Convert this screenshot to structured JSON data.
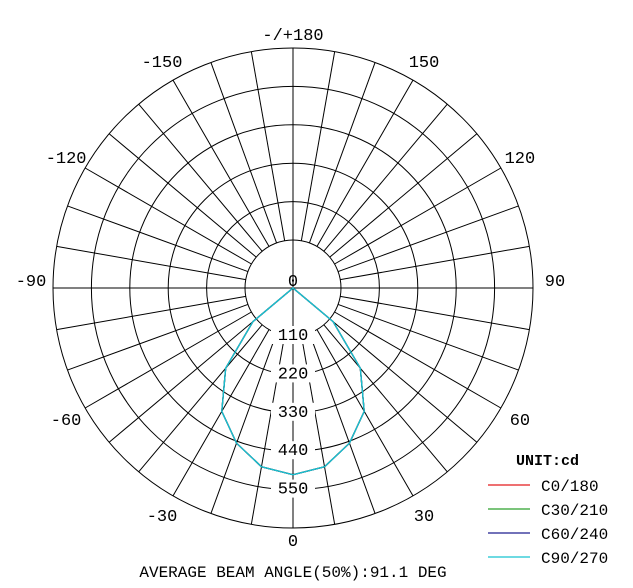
{
  "chart_data": {
    "type": "polar",
    "unit_label": "UNIT:cd",
    "footer": "AVERAGE BEAM ANGLE(50%):91.1 DEG",
    "angle_labels": [
      {
        "angle": 180,
        "text": "-/+180"
      },
      {
        "angle": -150,
        "text": "-150"
      },
      {
        "angle": 150,
        "text": "150"
      },
      {
        "angle": -120,
        "text": "-120"
      },
      {
        "angle": 120,
        "text": "120"
      },
      {
        "angle": -90,
        "text": "-90"
      },
      {
        "angle": 90,
        "text": "90"
      },
      {
        "angle": -60,
        "text": "-60"
      },
      {
        "angle": 60,
        "text": "60"
      },
      {
        "angle": -30,
        "text": "-30"
      },
      {
        "angle": 30,
        "text": "30"
      },
      {
        "angle": 0,
        "text": "0"
      }
    ],
    "radial_ticks": [
      "0",
      "110",
      "220",
      "330",
      "440",
      "550"
    ],
    "r_max": 550,
    "angle_step": 10,
    "series": [
      {
        "name": "C0/180",
        "color": "#e31a1c",
        "angles": [
          -90,
          -80,
          -70,
          -60,
          -50,
          -40,
          -30,
          -20,
          -10,
          0,
          10,
          20,
          30,
          40,
          50,
          60,
          70,
          80,
          90
        ],
        "values": [
          0,
          0,
          0,
          0,
          150,
          300,
          408,
          473,
          520,
          535,
          520,
          473,
          408,
          300,
          150,
          0,
          0,
          0,
          0
        ]
      },
      {
        "name": "C30/210",
        "color": "#2ca02c",
        "angles": [
          -90,
          -80,
          -70,
          -60,
          -50,
          -40,
          -30,
          -20,
          -10,
          0,
          10,
          20,
          30,
          40,
          50,
          60,
          70,
          80,
          90
        ],
        "values": [
          0,
          0,
          0,
          0,
          150,
          300,
          408,
          473,
          520,
          535,
          520,
          473,
          408,
          300,
          150,
          0,
          0,
          0,
          0
        ]
      },
      {
        "name": "C60/240",
        "color": "#1f1f8f",
        "angles": [
          -90,
          -80,
          -70,
          -60,
          -50,
          -40,
          -30,
          -20,
          -10,
          0,
          10,
          20,
          30,
          40,
          50,
          60,
          70,
          80,
          90
        ],
        "values": [
          0,
          0,
          0,
          0,
          150,
          300,
          408,
          473,
          520,
          535,
          520,
          473,
          408,
          300,
          150,
          0,
          0,
          0,
          0
        ]
      },
      {
        "name": "C90/270",
        "color": "#17c3d0",
        "angles": [
          -90,
          -80,
          -70,
          -60,
          -50,
          -40,
          -30,
          -20,
          -10,
          0,
          10,
          20,
          30,
          40,
          50,
          60,
          70,
          80,
          90
        ],
        "values": [
          0,
          0,
          0,
          0,
          150,
          300,
          408,
          473,
          520,
          535,
          520,
          473,
          408,
          300,
          150,
          0,
          0,
          0,
          0
        ]
      }
    ]
  }
}
